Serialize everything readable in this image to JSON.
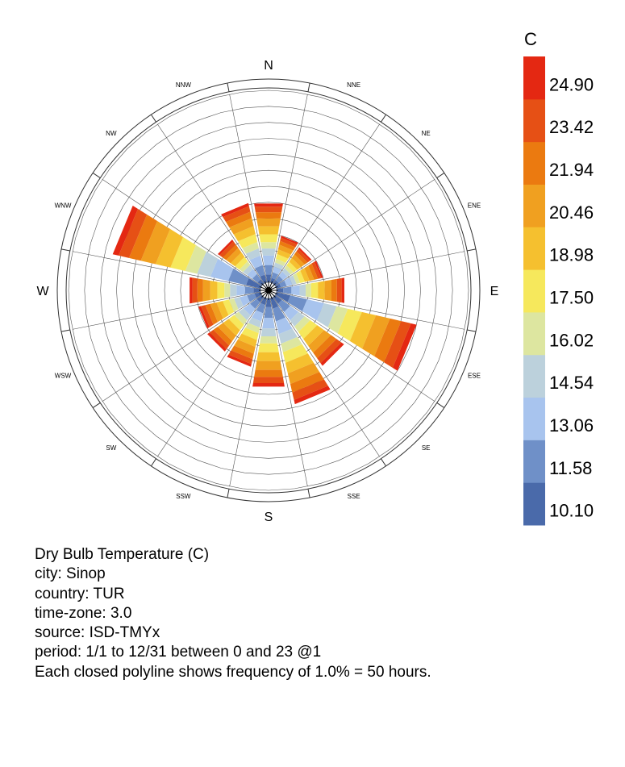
{
  "chart_data": {
    "type": "windrose",
    "directions": [
      "N",
      "NNE",
      "NE",
      "ENE",
      "E",
      "ESE",
      "SE",
      "SSE",
      "S",
      "SSW",
      "SW",
      "WSW",
      "W",
      "WNW",
      "NW",
      "NNW"
    ],
    "frequency_unit_percent": 1.0,
    "max_frequency_percent": 12,
    "legend": {
      "title": "C",
      "tick_labels": [
        "10.10",
        "11.58",
        "13.06",
        "14.54",
        "16.02",
        "17.50",
        "18.98",
        "20.46",
        "21.94",
        "23.42",
        "24.90"
      ],
      "colors": [
        "#4a6aaa",
        "#6f90c8",
        "#a8c4ee",
        "#bcd1dc",
        "#dde6a0",
        "#f6e85c",
        "#f5c02f",
        "#f0a020",
        "#eb7a10",
        "#e65015",
        "#e42812"
      ]
    },
    "petals": [
      {
        "direction": "N",
        "frequency_percent": 5.0
      },
      {
        "direction": "NNE",
        "frequency_percent": 3.0
      },
      {
        "direction": "NE",
        "frequency_percent": 2.8
      },
      {
        "direction": "ENE",
        "frequency_percent": 3.0
      },
      {
        "direction": "E",
        "frequency_percent": 4.3
      },
      {
        "direction": "ESE",
        "frequency_percent": 9.0
      },
      {
        "direction": "SE",
        "frequency_percent": 5.3
      },
      {
        "direction": "SSE",
        "frequency_percent": 6.8
      },
      {
        "direction": "S",
        "frequency_percent": 5.6
      },
      {
        "direction": "SSW",
        "frequency_percent": 4.4
      },
      {
        "direction": "SW",
        "frequency_percent": 4.2
      },
      {
        "direction": "WSW",
        "frequency_percent": 4.0
      },
      {
        "direction": "W",
        "frequency_percent": 4.5
      },
      {
        "direction": "WNW",
        "frequency_percent": 9.5
      },
      {
        "direction": "NW",
        "frequency_percent": 3.4
      },
      {
        "direction": "NNW",
        "frequency_percent": 5.1
      }
    ]
  },
  "info": {
    "variable": "Dry Bulb Temperature (C)",
    "city": "city: Sinop",
    "country": "country: TUR",
    "time_zone": "time-zone: 3.0",
    "source": "source: ISD-TMYx",
    "period": "period: 1/1 to 12/31 between 0 and 23 @1",
    "frequency_note": "Each closed polyline shows frequency of 1.0% = 50 hours."
  }
}
